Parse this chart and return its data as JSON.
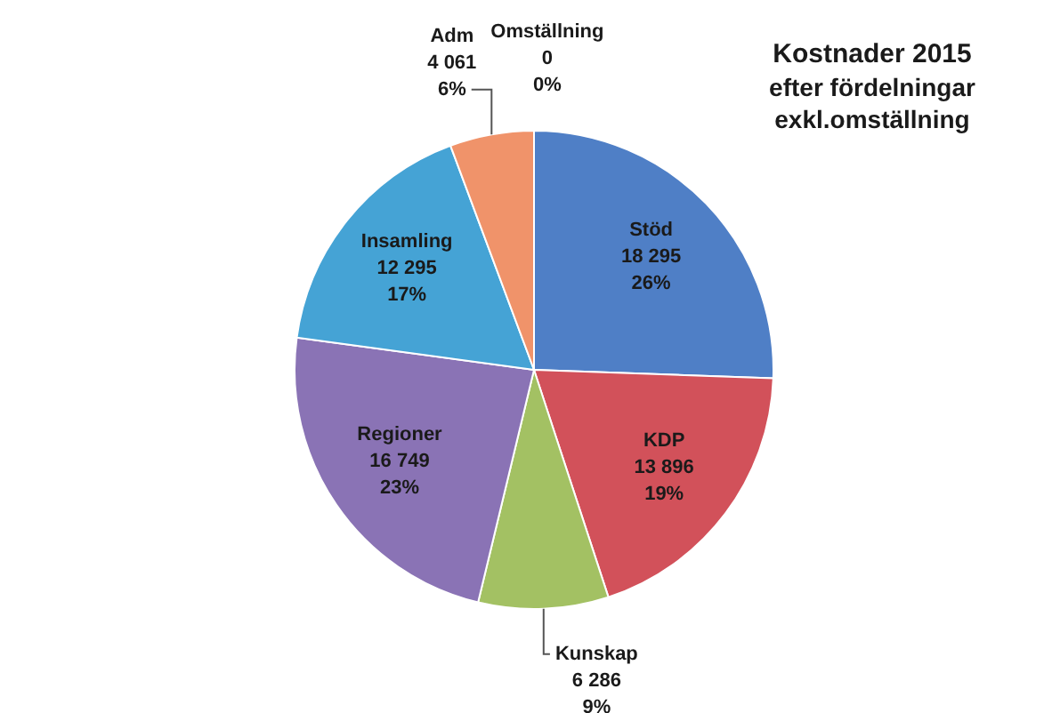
{
  "chart_data": {
    "type": "pie",
    "title": "Kostnader 2015",
    "subtitle": "efter fördelningar exkl.omställning",
    "categories": [
      "Stöd",
      "KDP",
      "Kunskap",
      "Regioner",
      "Insamling",
      "Adm",
      "Omställning"
    ],
    "values": [
      18295,
      13896,
      6286,
      16749,
      12295,
      4061,
      0
    ],
    "colors": [
      "#4f7fc6",
      "#d2515a",
      "#a3c163",
      "#8a73b5",
      "#45a3d5",
      "#f0936a",
      "#2c4d75"
    ],
    "value_labels": [
      "18 295\n26%",
      "13 896\n19%",
      "6 286\n9%",
      "16 749\n23%",
      "12 295\n17%",
      "4 061\n6%",
      "0\n0%"
    ]
  }
}
